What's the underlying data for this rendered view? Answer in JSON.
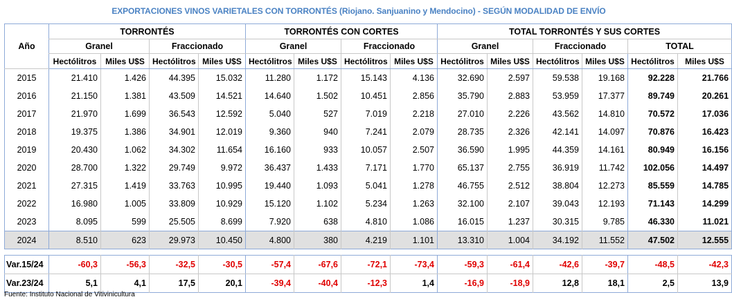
{
  "title": "EXPORTACIONES VINOS VARIETALES CON TORRONTÉS (Riojano. Sanjuanino y Mendocino) - SEGÚN MODALIDAD DE ENVÍO",
  "headers": {
    "year": "Año",
    "groups": [
      "TORRONTÉS",
      "TORRONTÉS CON CORTES",
      "TOTAL TORRONTÉS Y SUS CORTES"
    ],
    "sub": [
      "Granel",
      "Fraccionado",
      "Granel",
      "Fraccionado",
      "Granel",
      "Fraccionado",
      "TOTAL"
    ],
    "units": [
      "Hectólitros",
      "Miles U$S",
      "Hectólitros",
      "Miles U$S",
      "Hectólitros",
      "Miles U$S",
      "Hectólitros",
      "Miles U$S",
      "Hectólitros",
      "Miles U$S",
      "Hectólitros",
      "Miles U$S",
      "Hectólitros",
      "Miles U$S"
    ]
  },
  "rows": [
    [
      "2015",
      "21.410",
      "1.426",
      "44.395",
      "15.032",
      "11.280",
      "1.172",
      "15.143",
      "4.136",
      "32.690",
      "2.597",
      "59.538",
      "19.168",
      "92.228",
      "21.766"
    ],
    [
      "2016",
      "21.150",
      "1.381",
      "43.509",
      "14.521",
      "14.640",
      "1.502",
      "10.451",
      "2.856",
      "35.790",
      "2.883",
      "53.959",
      "17.377",
      "89.749",
      "20.261"
    ],
    [
      "2017",
      "21.970",
      "1.699",
      "36.543",
      "12.592",
      "5.040",
      "527",
      "7.019",
      "2.218",
      "27.010",
      "2.226",
      "43.562",
      "14.810",
      "70.572",
      "17.036"
    ],
    [
      "2018",
      "19.375",
      "1.386",
      "34.901",
      "12.019",
      "9.360",
      "940",
      "7.241",
      "2.079",
      "28.735",
      "2.326",
      "42.141",
      "14.097",
      "70.876",
      "16.423"
    ],
    [
      "2019",
      "20.430",
      "1.062",
      "34.302",
      "11.654",
      "16.160",
      "933",
      "10.057",
      "2.507",
      "36.590",
      "1.995",
      "44.359",
      "14.161",
      "80.949",
      "16.156"
    ],
    [
      "2020",
      "28.700",
      "1.322",
      "29.749",
      "9.972",
      "36.437",
      "1.433",
      "7.171",
      "1.770",
      "65.137",
      "2.755",
      "36.919",
      "11.742",
      "102.056",
      "14.497"
    ],
    [
      "2021",
      "27.315",
      "1.419",
      "33.763",
      "10.995",
      "19.440",
      "1.093",
      "5.041",
      "1.278",
      "46.755",
      "2.512",
      "38.804",
      "12.273",
      "85.559",
      "14.785"
    ],
    [
      "2022",
      "16.980",
      "1.005",
      "33.809",
      "10.929",
      "15.120",
      "1.102",
      "5.234",
      "1.263",
      "32.100",
      "2.107",
      "39.043",
      "12.193",
      "71.143",
      "14.299"
    ],
    [
      "2023",
      "8.095",
      "599",
      "25.505",
      "8.699",
      "7.920",
      "638",
      "4.810",
      "1.086",
      "16.015",
      "1.237",
      "30.315",
      "9.785",
      "46.330",
      "11.021"
    ],
    [
      "2024",
      "8.510",
      "623",
      "29.973",
      "10.450",
      "4.800",
      "380",
      "4.219",
      "1.101",
      "13.310",
      "1.004",
      "34.192",
      "11.552",
      "47.502",
      "12.555"
    ]
  ],
  "variations": [
    {
      "label": "Var.15/24",
      "values": [
        "-60,3",
        "-56,3",
        "-32,5",
        "-30,5",
        "-57,4",
        "-67,6",
        "-72,1",
        "-73,4",
        "-59,3",
        "-61,4",
        "-42,6",
        "-39,7",
        "-48,5",
        "-42,3"
      ]
    },
    {
      "label": "Var.23/24",
      "values": [
        "5,1",
        "4,1",
        "17,5",
        "20,1",
        "-39,4",
        "-40,4",
        "-12,3",
        "1,4",
        "-16,9",
        "-18,9",
        "12,8",
        "18,1",
        "2,5",
        "13,9"
      ]
    }
  ],
  "footer": "Fuente: Instituto Nacional de Vitivinicultura",
  "colors": {
    "title": "#4a82c3",
    "negative": "#e00000",
    "highlight": "#e0e0e0",
    "border_blue": "#8eaad8"
  }
}
